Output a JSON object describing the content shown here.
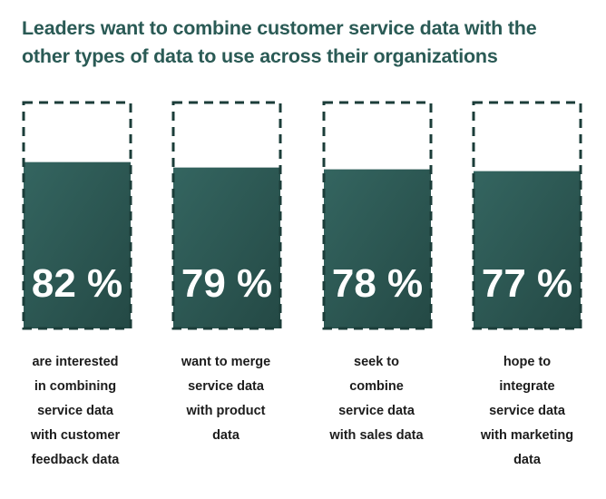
{
  "title_line1": "Leaders want to combine customer service data with the",
  "title_line2": "other types of data to use across their organizations",
  "colors": {
    "fill_top": "#346560",
    "fill_bottom": "#244945",
    "dashed_border": "#1b3d39",
    "value_text": "#ffffff",
    "title_text": "#2a5a55",
    "caption_text": "#1c1c1c"
  },
  "chart_data": {
    "type": "bar",
    "unit": "%",
    "ylim": [
      0,
      100
    ],
    "grid": false,
    "legend": "none",
    "categories": [
      "are interested in combining service data with customer feedback data",
      "want to merge service data with product data",
      "seek to combine service data with sales data",
      "hope to integrate service data with marketing data"
    ],
    "values": [
      82,
      79,
      78,
      77
    ],
    "value_labels": [
      "82 %",
      "79 %",
      "78 %",
      "77 %"
    ]
  },
  "captions": [
    [
      "are interested",
      "in combining",
      "service data",
      "with customer",
      "feedback data"
    ],
    [
      "want to merge",
      "service data",
      "with product",
      "data"
    ],
    [
      "seek to",
      "combine",
      "service data",
      "with sales data"
    ],
    [
      "hope to",
      "integrate",
      "service data",
      "with marketing",
      "data"
    ]
  ]
}
